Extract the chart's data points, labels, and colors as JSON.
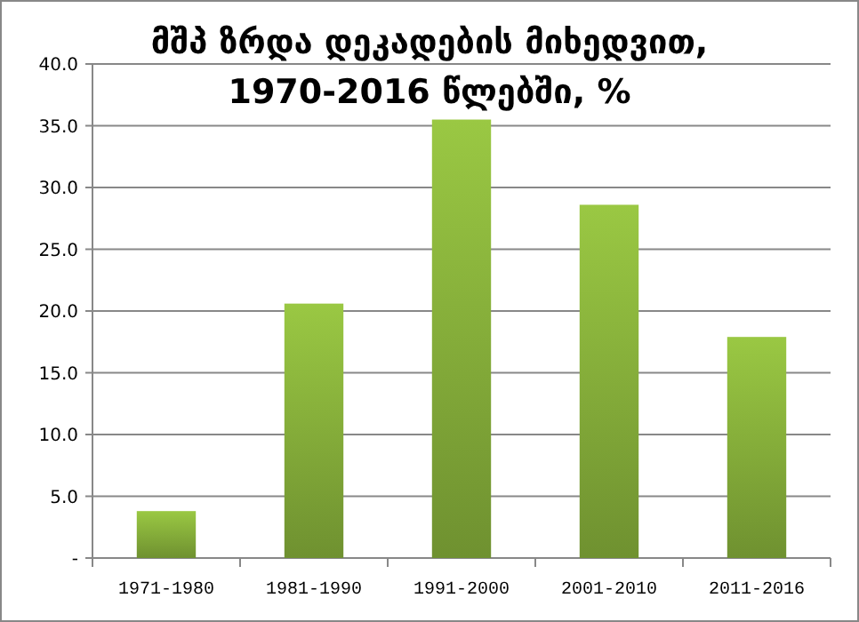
{
  "chart_data": {
    "type": "bar",
    "title": "მშპ ზრდა დეკადების მიხედვით, 1970-2016 წლებში, %",
    "categories": [
      "1971-1980",
      "1981-1990",
      "1991-2000",
      "2001-2010",
      "2011-2016"
    ],
    "values": [
      3.8,
      20.6,
      35.5,
      28.6,
      17.9
    ],
    "color": "#8ab43c",
    "ylim": [
      0,
      40
    ],
    "yticks": [
      {
        "value": 0,
        "label": "-"
      },
      {
        "value": 5,
        "label": "5.0"
      },
      {
        "value": 10,
        "label": "10.0"
      },
      {
        "value": 15,
        "label": "15.0"
      },
      {
        "value": 20,
        "label": "20.0"
      },
      {
        "value": 25,
        "label": "25.0"
      },
      {
        "value": 30,
        "label": "30.0"
      },
      {
        "value": 35,
        "label": "35.0"
      },
      {
        "value": 40,
        "label": "40.0"
      }
    ],
    "grid": "y"
  }
}
